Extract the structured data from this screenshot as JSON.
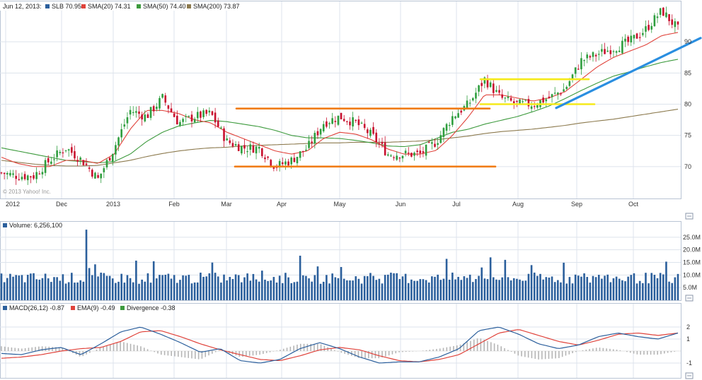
{
  "colors": {
    "price_up": "#2e9e3e",
    "price_down": "#c8102e",
    "sma20": "#e0433b",
    "sma50": "#3d9a3d",
    "sma200": "#8c7a4e",
    "volume": "#2b5f9c",
    "macd": "#2b5f9c",
    "ema9": "#e0433b",
    "divergence": "#b5b5b5",
    "trend_orange": "#f07c16",
    "trend_yellow": "#f5ea1a",
    "trend_blue": "#2a8ee0",
    "grid": "#dde3ec",
    "border": "#b9c4d4"
  },
  "legend": {
    "date": "Jun 12, 2013:",
    "slb": "SLB 70.95",
    "sma20": "SMA(20) 74.31",
    "sma50": "SMA(50) 74.40",
    "sma200": "SMA(200) 73.87"
  },
  "watermark": "© 2013 Yahoo! Inc.",
  "volume_legend": "Volume: 6,256,100",
  "macd_legend": {
    "macd": "MACD(26,12) -0.87",
    "ema": "EMA(9) -0.49",
    "divergence": "Divergence -0.38"
  },
  "chart_data": [
    {
      "type": "line",
      "title": "",
      "x_ticks": [
        "2012",
        "Dec",
        "2013",
        "Feb",
        "Mar",
        "Apr",
        "May",
        "Jun",
        "Jul",
        "Aug",
        "Sep",
        "Oct"
      ],
      "y_ticks": [
        70,
        75,
        80,
        85,
        90
      ],
      "ylim": [
        65,
        95
      ],
      "price_series": [
        {
          "name": "SLB",
          "values": [
            69,
            68.5,
            68.5,
            71,
            73,
            71,
            68,
            73,
            79,
            78,
            81,
            77,
            78,
            78.5,
            74,
            73,
            73,
            70,
            71,
            73,
            77,
            78,
            77,
            75,
            72,
            72,
            72,
            74,
            78,
            80,
            84,
            81,
            80,
            80,
            81,
            82.5,
            87,
            88,
            89,
            90,
            92,
            95,
            92
          ]
        },
        {
          "name": "SMA(20)",
          "values": [
            71.5,
            70.5,
            70,
            70,
            71,
            71,
            70.5,
            72,
            76,
            79,
            79,
            78.5,
            77.5,
            77,
            75.5,
            74.5,
            73.5,
            72.5,
            72,
            72.5,
            74.5,
            75.5,
            75.2,
            74.3,
            72.8,
            72,
            72,
            72.6,
            75,
            78,
            81.5,
            81.5,
            81,
            80.5,
            81,
            82,
            84,
            86,
            87.5,
            88.5,
            89.5,
            91,
            91.5
          ]
        },
        {
          "name": "SMA(50)",
          "values": [
            73,
            72.5,
            72,
            71.5,
            71,
            70.8,
            70.6,
            70.8,
            72,
            74,
            75.5,
            76.5,
            77,
            77.4,
            77.2,
            76.8,
            76.4,
            75.8,
            75,
            74.6,
            74.6,
            74.5,
            74.2,
            73.8,
            73.3,
            73.2,
            73.5,
            74.5,
            75.5,
            76,
            76.8,
            77.4,
            78,
            78.8,
            79.7,
            80.9,
            82.2,
            83.4,
            84.5,
            85.2,
            86,
            86.7,
            87.2
          ]
        },
        {
          "name": "SMA(200)",
          "values": [
            71,
            70.7,
            70.4,
            70.2,
            70.1,
            70.1,
            70.2,
            70.6,
            71,
            71.6,
            72.1,
            72.5,
            72.8,
            73,
            73.1,
            73.3,
            73.4,
            73.5,
            73.6,
            73.7,
            73.8,
            73.8,
            73.9,
            73.9,
            73.9,
            74,
            74.1,
            74.3,
            74.6,
            74.9,
            75.3,
            75.6,
            75.8,
            76,
            76.3,
            76.6,
            77,
            77.3,
            77.6,
            78,
            78.4,
            78.8,
            79.2
          ]
        }
      ],
      "trend_lines": [
        {
          "color": "orange",
          "value": 79.3,
          "from": "Mar",
          "to": "Jul"
        },
        {
          "color": "orange",
          "value": 70,
          "from": "Mar",
          "to": "Jul"
        },
        {
          "color": "yellow",
          "value": 84,
          "from": "Jul",
          "to": "Sep"
        },
        {
          "color": "yellow",
          "value": 80,
          "from": "Jul",
          "to": "Sep"
        },
        {
          "color": "blue",
          "values": [
            79.4,
            90.6
          ],
          "from": "Aug",
          "to": "Oct"
        }
      ]
    },
    {
      "type": "bar",
      "title": "Volume: 6,256,100",
      "y_ticks": [
        "5.0M",
        "10.0M",
        "15.0M",
        "20.0M",
        "25.0M"
      ],
      "ylim": [
        0,
        30
      ],
      "unit": "M",
      "spikes": [
        {
          "near": "2013",
          "value": 28
        },
        {
          "near": "Jul",
          "value": 17
        }
      ]
    },
    {
      "type": "line",
      "title": "MACD",
      "y_ticks": [
        2,
        1,
        -1
      ],
      "ylim": [
        -1.6,
        2.3
      ],
      "series": [
        {
          "name": "MACD(26,12)",
          "values": [
            -0.2,
            -0.3,
            0.1,
            0.3,
            -0.3,
            0.6,
            1.6,
            2.0,
            1.4,
            0.7,
            -0.1,
            0.2,
            -0.8,
            -1.0,
            -0.7,
            0.2,
            0.7,
            0.2,
            -0.5,
            -1.0,
            -0.9,
            -0.9,
            -0.5,
            0.2,
            1.7,
            2.0,
            1.4,
            0.6,
            0.2,
            0.5,
            1.2,
            1.5,
            1.2,
            1.0,
            1.5
          ]
        },
        {
          "name": "EMA(9)",
          "values": [
            -0.6,
            -0.5,
            -0.3,
            0,
            0.2,
            0.3,
            0.8,
            1.6,
            1.7,
            1.2,
            0.6,
            0.1,
            -0.3,
            -0.7,
            -0.8,
            -0.4,
            0.1,
            0.3,
            0.1,
            -0.4,
            -0.8,
            -0.9,
            -0.7,
            -0.3,
            0.6,
            1.5,
            1.8,
            1.3,
            0.8,
            0.5,
            0.9,
            1.4,
            1.5,
            1.3,
            1.5
          ]
        }
      ]
    }
  ]
}
